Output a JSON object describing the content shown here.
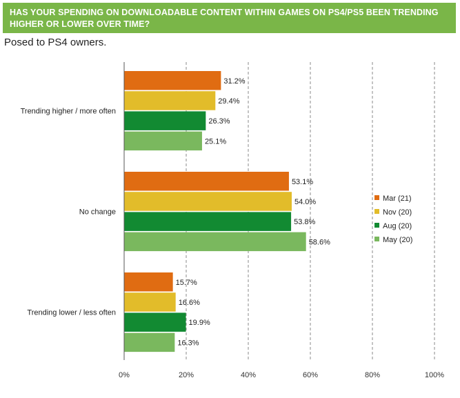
{
  "title": "HAS YOUR SPENDING ON DOWNLOADABLE CONTENT WITHIN GAMES ON PS4/PS5 BEEN TRENDING HIGHER OR LOWER OVER TIME?",
  "subtitle": "Posed to PS4 owners.",
  "colors": {
    "banner": "#7ab648",
    "Mar (21)": "#e06c12",
    "Nov (20)": "#e2bc2a",
    "Aug (20)": "#128a32",
    "May (20)": "#7ab85e"
  },
  "chart_data": {
    "type": "bar",
    "orientation": "horizontal",
    "categories": [
      "Trending higher / more often",
      "No change",
      "Trending lower / less often"
    ],
    "series": [
      {
        "name": "Mar (21)",
        "values": [
          31.2,
          53.1,
          15.7
        ],
        "labels": [
          "31.2%",
          "53.1%",
          "15.7%"
        ]
      },
      {
        "name": "Nov (20)",
        "values": [
          29.4,
          54.0,
          16.6
        ],
        "labels": [
          "29.4%",
          "54.0%",
          "16.6%"
        ]
      },
      {
        "name": "Aug (20)",
        "values": [
          26.3,
          53.8,
          19.9
        ],
        "labels": [
          "26.3%",
          "53.8%",
          "19.9%"
        ]
      },
      {
        "name": "May (20)",
        "values": [
          25.1,
          58.6,
          16.3
        ],
        "labels": [
          "25.1%",
          "58.6%",
          "16.3%"
        ]
      }
    ],
    "xlim": [
      0,
      100
    ],
    "xticks": [
      "0%",
      "20%",
      "40%",
      "60%",
      "80%",
      "100%"
    ],
    "grid": "vertical dashed",
    "legend_position": "right"
  }
}
